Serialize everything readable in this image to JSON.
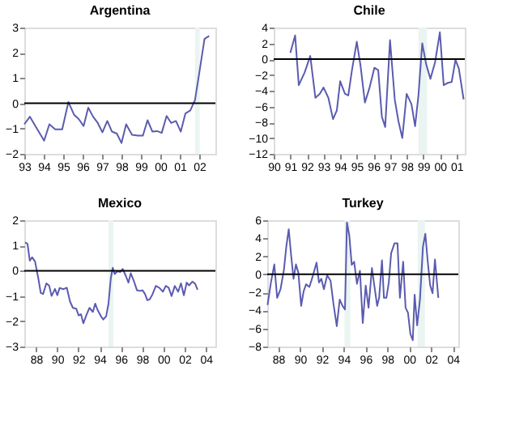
{
  "chart_data": [
    {
      "type": "line",
      "title": "Argentina",
      "x": [
        1993.0,
        1993.29,
        1993.61,
        1994.02,
        1994.29,
        1994.59,
        1994.95,
        1995.27,
        1995.56,
        1995.8,
        1996.05,
        1996.29,
        1996.54,
        1996.78,
        1997.02,
        1997.27,
        1997.51,
        1997.76,
        1998.0,
        1998.24,
        1998.54,
        1998.85,
        1999.1,
        1999.34,
        1999.59,
        1999.83,
        2000.07,
        2000.32,
        2000.56,
        2000.8,
        2001.05,
        2001.29,
        2001.54,
        2001.78,
        2002.02,
        2002.27,
        2002.51
      ],
      "series": [
        {
          "color": "#5b5bb0",
          "values": [
            -0.83,
            -0.53,
            -0.95,
            -1.48,
            -0.83,
            -1.03,
            -1.03,
            0.05,
            -0.45,
            -0.62,
            -0.9,
            -0.17,
            -0.53,
            -0.78,
            -1.15,
            -0.7,
            -1.12,
            -1.2,
            -1.57,
            -0.83,
            -1.25,
            -1.28,
            -1.28,
            -0.67,
            -1.12,
            -1.1,
            -1.17,
            -0.5,
            -0.78,
            -0.7,
            -1.12,
            -0.4,
            -0.28,
            0.13,
            1.3,
            2.55,
            2.67
          ]
        }
      ],
      "xlim": [
        1993,
        2002.83
      ],
      "xticks": [
        {
          "value": 1993,
          "label": "93"
        },
        {
          "value": 1994,
          "label": "94"
        },
        {
          "value": 1995,
          "label": "95"
        },
        {
          "value": 1996,
          "label": "96"
        },
        {
          "value": 1997,
          "label": "97"
        },
        {
          "value": 1998,
          "label": "98"
        },
        {
          "value": 1999,
          "label": "99"
        },
        {
          "value": 2000,
          "label": "00"
        },
        {
          "value": 2001,
          "label": "01"
        },
        {
          "value": 2002,
          "label": "02"
        }
      ],
      "ylim": [
        -2,
        3
      ],
      "yticks": [
        -2,
        -1,
        0,
        1,
        2,
        3
      ],
      "ref_lines": [
        {
          "axis": "y",
          "value": 0,
          "color": "#000000"
        }
      ],
      "bands": [
        {
          "axis": "x",
          "from": 2001.78,
          "to": 2002.02,
          "color": "#eaf4f1"
        }
      ]
    },
    {
      "type": "line",
      "title": "Chile",
      "x": [
        1991.0,
        1991.29,
        1991.51,
        1991.86,
        1992.2,
        1992.51,
        1992.77,
        1993.0,
        1993.29,
        1993.57,
        1993.8,
        1994.0,
        1994.29,
        1994.49,
        1994.71,
        1995.0,
        1995.23,
        1995.49,
        1995.77,
        1996.06,
        1996.29,
        1996.51,
        1996.71,
        1997.0,
        1997.29,
        1997.51,
        1997.74,
        1998.0,
        1998.29,
        1998.51,
        1998.71,
        1998.94,
        1999.17,
        1999.43,
        1999.71,
        2000.0,
        2000.23,
        2000.49,
        2000.71,
        2000.94,
        2001.14,
        2001.43
      ],
      "series": [
        {
          "color": "#5b5bb0",
          "values": [
            0.8,
            3.0,
            -3.3,
            -1.7,
            0.4,
            -4.9,
            -4.4,
            -3.6,
            -4.9,
            -7.6,
            -6.5,
            -2.8,
            -4.4,
            -4.6,
            -1.4,
            2.2,
            -0.9,
            -5.5,
            -3.6,
            -1.1,
            -1.4,
            -7.3,
            -8.6,
            2.4,
            -5.2,
            -7.9,
            -10,
            -4.4,
            -5.7,
            -8.5,
            -4.6,
            2.0,
            -0.6,
            -2.5,
            -0.4,
            3.4,
            -3.3,
            -3.0,
            -2.9,
            -0.1,
            -1.2,
            -5.1
          ]
        }
      ],
      "xlim": [
        1990,
        2001.5
      ],
      "xticks": [
        {
          "value": 1990,
          "label": "90"
        },
        {
          "value": 1991,
          "label": "91"
        },
        {
          "value": 1992,
          "label": "92"
        },
        {
          "value": 1993,
          "label": "93"
        },
        {
          "value": 1994,
          "label": "94"
        },
        {
          "value": 1995,
          "label": "95"
        },
        {
          "value": 1996,
          "label": "96"
        },
        {
          "value": 1997,
          "label": "97"
        },
        {
          "value": 1998,
          "label": "98"
        },
        {
          "value": 1999,
          "label": "99"
        },
        {
          "value": 2000,
          "label": "00"
        },
        {
          "value": 2001,
          "label": "01"
        }
      ],
      "ylim": [
        -12,
        4
      ],
      "yticks": [
        -12,
        -10,
        -8,
        -6,
        -4,
        -2,
        0,
        2,
        4
      ],
      "ref_lines": [
        {
          "axis": "y",
          "value": 0,
          "color": "#000000"
        }
      ],
      "bands": [
        {
          "axis": "x",
          "from": 1998.71,
          "to": 1999.23,
          "color": "#eaf4f1"
        }
      ]
    },
    {
      "type": "line",
      "title": "Mexico",
      "x": [
        1986.97,
        1987.2,
        1987.42,
        1987.64,
        1987.91,
        1988.22,
        1988.45,
        1988.67,
        1988.98,
        1989.25,
        1989.47,
        1989.79,
        1990.01,
        1990.23,
        1990.59,
        1990.9,
        1991.21,
        1991.48,
        1991.79,
        1992.02,
        1992.24,
        1992.46,
        1992.78,
        1993.04,
        1993.36,
        1993.58,
        1993.8,
        1994.12,
        1994.34,
        1994.61,
        1994.83,
        1995.05,
        1995.23,
        1995.41,
        1995.68,
        1995.95,
        1996.17,
        1996.48,
        1996.71,
        1996.93,
        1997.2,
        1997.51,
        1997.82,
        1998.04,
        1998.27,
        1998.49,
        1998.71,
        1998.98,
        1999.29,
        1999.61,
        1999.96,
        2000.23,
        2000.5,
        2000.77,
        2001.08,
        2001.39,
        2001.66,
        2001.93,
        2002.2,
        2002.42,
        2002.73,
        2003.0,
        2003.22
      ],
      "series": [
        {
          "color": "#5b5bb0",
          "values": [
            1.12,
            1.07,
            0.4,
            0.53,
            0.37,
            -0.3,
            -0.88,
            -0.92,
            -0.5,
            -0.6,
            -1.0,
            -0.72,
            -0.97,
            -0.68,
            -0.73,
            -0.67,
            -1.22,
            -1.47,
            -1.5,
            -1.77,
            -1.72,
            -2.08,
            -1.72,
            -1.47,
            -1.63,
            -1.3,
            -1.55,
            -1.8,
            -1.93,
            -1.8,
            -1.3,
            -0.3,
            0.12,
            -0.13,
            -0.02,
            -0.05,
            0.07,
            -0.22,
            -0.47,
            -0.1,
            -0.38,
            -0.77,
            -0.8,
            -0.77,
            -0.92,
            -1.17,
            -1.13,
            -0.93,
            -0.6,
            -0.67,
            -0.83,
            -0.6,
            -0.67,
            -1.0,
            -0.6,
            -0.83,
            -0.5,
            -0.97,
            -0.47,
            -0.58,
            -0.43,
            -0.52,
            -0.75
          ]
        }
      ],
      "xlim": [
        1986.9,
        2004.9
      ],
      "xticks": [
        {
          "value": 1988,
          "label": "88"
        },
        {
          "value": 1990,
          "label": "90"
        },
        {
          "value": 1992,
          "label": "92"
        },
        {
          "value": 1994,
          "label": "94"
        },
        {
          "value": 1996,
          "label": "96"
        },
        {
          "value": 1998,
          "label": "98"
        },
        {
          "value": 2000,
          "label": "00"
        },
        {
          "value": 2002,
          "label": "02"
        },
        {
          "value": 2004,
          "label": "04"
        }
      ],
      "ylim": [
        -3,
        2
      ],
      "yticks": [
        -3,
        -2,
        -1,
        0,
        1,
        2
      ],
      "ref_lines": [
        {
          "axis": "y",
          "value": 0,
          "color": "#000000"
        }
      ],
      "bands": [
        {
          "axis": "x",
          "from": 1994.83,
          "to": 1995.28,
          "color": "#eaf4f1"
        }
      ]
    },
    {
      "type": "line",
      "title": "Turkey",
      "x": [
        1987.03,
        1987.34,
        1987.65,
        1987.91,
        1988.22,
        1988.53,
        1988.75,
        1988.97,
        1989.19,
        1989.41,
        1989.63,
        1989.85,
        1990.11,
        1990.33,
        1990.56,
        1990.86,
        1991.17,
        1991.52,
        1991.74,
        1991.96,
        1992.19,
        1992.49,
        1992.8,
        1993.07,
        1993.37,
        1993.64,
        1993.9,
        1994.12,
        1994.3,
        1994.52,
        1994.74,
        1994.96,
        1995.22,
        1995.49,
        1995.75,
        1996.02,
        1996.28,
        1996.59,
        1996.81,
        1997.07,
        1997.25,
        1997.51,
        1997.69,
        1997.91,
        1998.13,
        1998.35,
        1998.66,
        1998.93,
        1999.15,
        1999.45,
        1999.67,
        1999.89,
        2000.11,
        2000.33,
        2000.5,
        2000.73,
        2000.99,
        2001.26,
        2001.48,
        2001.7,
        2001.92,
        2002.14,
        2002.36,
        2002.67
      ],
      "series": [
        {
          "color": "#5b5bb0",
          "values": [
            -3.4,
            -0.9,
            1.1,
            -2.6,
            -1.65,
            0.5,
            3.1,
            5.0,
            2.1,
            -0.5,
            1.1,
            0.2,
            -3.5,
            -1.9,
            -1.1,
            -1.4,
            -0.2,
            1.3,
            -0.9,
            -0.5,
            -1.65,
            -0.1,
            -0.7,
            -3.3,
            -5.75,
            -2.8,
            -3.5,
            -3.9,
            5.75,
            4.25,
            1.05,
            1.4,
            -1.05,
            0.4,
            -5.4,
            -1.25,
            -3.7,
            0.7,
            -1.25,
            -3.5,
            -2.6,
            1.55,
            -2.6,
            -2.6,
            -0.95,
            2.35,
            3.45,
            3.45,
            -2.6,
            1.4,
            -3.7,
            -4.25,
            -6.6,
            -7.3,
            -2.25,
            -5.65,
            -2.75,
            3.05,
            4.5,
            1.4,
            -1.2,
            -2.1,
            1.65,
            -2.6
          ]
        }
      ],
      "xlim": [
        1987,
        2004.5
      ],
      "xticks": [
        {
          "value": 1988,
          "label": "88"
        },
        {
          "value": 1990,
          "label": "90"
        },
        {
          "value": 1992,
          "label": "92"
        },
        {
          "value": 1994,
          "label": "94"
        },
        {
          "value": 1996,
          "label": "96"
        },
        {
          "value": 1998,
          "label": "98"
        },
        {
          "value": 2000,
          "label": "00"
        },
        {
          "value": 2002,
          "label": "02"
        },
        {
          "value": 2004,
          "label": "04"
        }
      ],
      "ylim": [
        -8,
        6
      ],
      "yticks": [
        -8,
        -6,
        -4,
        -2,
        0,
        2,
        4,
        6
      ],
      "ref_lines": [
        {
          "axis": "y",
          "value": 0,
          "color": "#000000"
        }
      ],
      "bands": [
        {
          "axis": "x",
          "from": 1994.08,
          "to": 1994.61,
          "color": "#eaf4f1"
        },
        {
          "axis": "x",
          "from": 2000.78,
          "to": 2001.44,
          "color": "#eaf4f1"
        }
      ]
    }
  ]
}
